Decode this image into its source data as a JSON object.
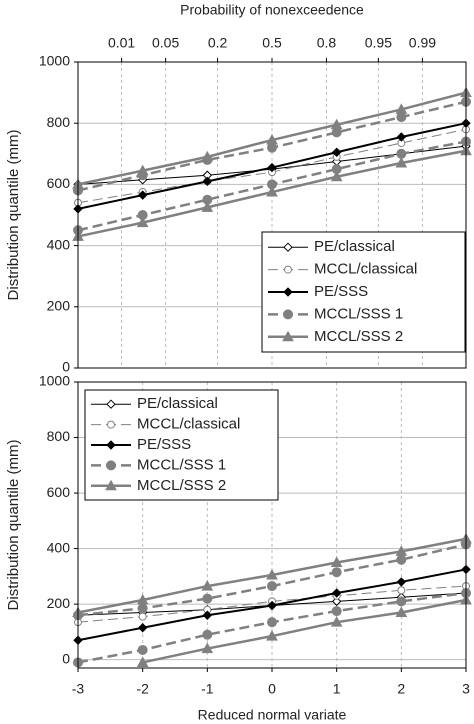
{
  "chart_data": [
    {
      "type": "line",
      "x_top_label": "Probability of nonexceedence",
      "y_label": "Distribution quantile (mm)",
      "x": [
        -3,
        -2,
        -1,
        0,
        1,
        2,
        3
      ],
      "xlim": [
        -3,
        3
      ],
      "x2ticks": [
        {
          "value": -2.326,
          "label": "0.01"
        },
        {
          "value": -1.645,
          "label": "0.05"
        },
        {
          "value": -0.842,
          "label": "0.2"
        },
        {
          "value": 0,
          "label": "0.5"
        },
        {
          "value": 0.842,
          "label": "0.8"
        },
        {
          "value": 1.645,
          "label": "0.95"
        },
        {
          "value": 2.326,
          "label": "0.99"
        }
      ],
      "ylim": [
        0,
        1000
      ],
      "yticks": [
        0,
        200,
        400,
        600,
        800,
        1000
      ],
      "grid": true,
      "series": [
        {
          "name": "PE/classical",
          "color": "#000000",
          "marker": "diamond-open",
          "dash": false,
          "width": 1,
          "values": [
            600,
            615,
            630,
            650,
            675,
            700,
            725
          ]
        },
        {
          "name": "MCCL/classical",
          "color": "#808080",
          "marker": "circle-open",
          "dash": true,
          "width": 1,
          "values": [
            540,
            575,
            610,
            640,
            690,
            735,
            780
          ]
        },
        {
          "name": "PE/SSS",
          "color": "#000000",
          "marker": "diamond",
          "dash": false,
          "width": 2,
          "values": [
            520,
            565,
            610,
            655,
            705,
            755,
            800
          ]
        },
        {
          "name": "MCCL/SSS 1",
          "color": "#808080",
          "marker": "circle",
          "dash": true,
          "width": 2.5,
          "lower": [
            450,
            500,
            550,
            600,
            650,
            700,
            740
          ],
          "upper": [
            580,
            630,
            680,
            720,
            770,
            820,
            870
          ]
        },
        {
          "name": "MCCL/SSS 2",
          "color": "#808080",
          "marker": "triangle",
          "dash": false,
          "width": 2.5,
          "lower": [
            430,
            475,
            525,
            575,
            625,
            670,
            710
          ],
          "upper": [
            600,
            645,
            690,
            745,
            795,
            845,
            900
          ]
        }
      ]
    },
    {
      "type": "line",
      "x_label": "Reduced normal variate",
      "y_label": "Distribution quantile (mm)",
      "x": [
        -3,
        -2,
        -1,
        0,
        1,
        2,
        3
      ],
      "xlim": [
        -3,
        3
      ],
      "xticks": [
        -3,
        -2,
        -1,
        0,
        1,
        2,
        3
      ],
      "ylim": [
        -30,
        1000
      ],
      "yticks": [
        0,
        200,
        400,
        600,
        800,
        1000
      ],
      "grid": true,
      "series": [
        {
          "name": "PE/classical",
          "color": "#000000",
          "marker": "diamond-open",
          "dash": false,
          "width": 1,
          "values": [
            160,
            170,
            180,
            195,
            210,
            225,
            240
          ]
        },
        {
          "name": "MCCL/classical",
          "color": "#808080",
          "marker": "circle-open",
          "dash": true,
          "width": 1,
          "values": [
            135,
            155,
            180,
            210,
            230,
            250,
            265
          ]
        },
        {
          "name": "PE/SSS",
          "color": "#000000",
          "marker": "diamond",
          "dash": false,
          "width": 2,
          "values": [
            70,
            115,
            160,
            195,
            240,
            280,
            325
          ]
        },
        {
          "name": "MCCL/SSS 1",
          "color": "#808080",
          "marker": "circle",
          "dash": true,
          "width": 2.5,
          "lower": [
            -10,
            35,
            90,
            135,
            175,
            210,
            240
          ],
          "upper": [
            160,
            185,
            220,
            265,
            315,
            360,
            415
          ]
        },
        {
          "name": "MCCL/SSS 2",
          "color": "#808080",
          "marker": "triangle",
          "dash": false,
          "width": 2.5,
          "lower": [
            null,
            -10,
            40,
            85,
            135,
            170,
            215
          ],
          "upper": [
            170,
            215,
            265,
            305,
            350,
            390,
            435
          ]
        }
      ]
    }
  ]
}
